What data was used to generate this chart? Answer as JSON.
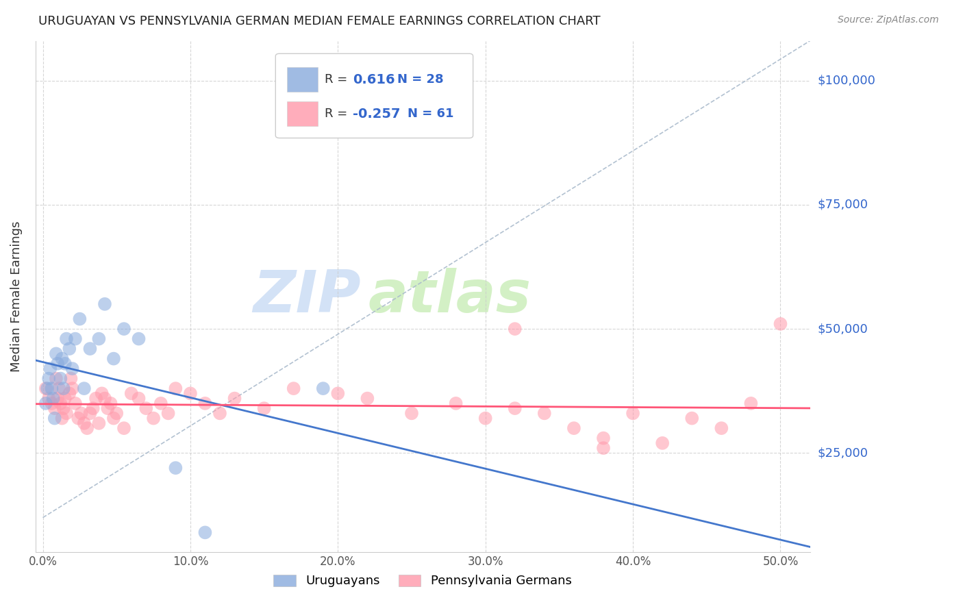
{
  "title": "URUGUAYAN VS PENNSYLVANIA GERMAN MEDIAN FEMALE EARNINGS CORRELATION CHART",
  "source": "Source: ZipAtlas.com",
  "ylabel": "Median Female Earnings",
  "xlabel_ticks": [
    "0.0%",
    "10.0%",
    "20.0%",
    "30.0%",
    "40.0%",
    "50.0%"
  ],
  "xlabel_vals": [
    0.0,
    0.1,
    0.2,
    0.3,
    0.4,
    0.5
  ],
  "ytick_labels": [
    "$25,000",
    "$50,000",
    "$75,000",
    "$100,000"
  ],
  "ytick_vals": [
    25000,
    50000,
    75000,
    100000
  ],
  "xlim": [
    -0.005,
    0.52
  ],
  "ylim": [
    5000,
    108000
  ],
  "watermark_zip": "ZIP",
  "watermark_atlas": "atlas",
  "uruguayan_R": 0.616,
  "uruguayan_N": 28,
  "pennsylvania_R": -0.257,
  "pennsylvania_N": 61,
  "blue_color": "#88AADD",
  "pink_color": "#FF99AA",
  "blue_line_color": "#4477CC",
  "pink_line_color": "#FF5577",
  "dashed_line_color": "#AABBCC",
  "uruguayan_x": [
    0.002,
    0.003,
    0.004,
    0.005,
    0.006,
    0.007,
    0.008,
    0.009,
    0.01,
    0.012,
    0.013,
    0.014,
    0.015,
    0.016,
    0.018,
    0.02,
    0.022,
    0.025,
    0.028,
    0.032,
    0.038,
    0.042,
    0.048,
    0.055,
    0.065,
    0.09,
    0.11,
    0.19
  ],
  "uruguayan_y": [
    35000,
    38000,
    40000,
    42000,
    38000,
    36000,
    32000,
    45000,
    43000,
    40000,
    44000,
    38000,
    43000,
    48000,
    46000,
    42000,
    48000,
    52000,
    38000,
    46000,
    48000,
    55000,
    44000,
    50000,
    48000,
    22000,
    9000,
    38000
  ],
  "pennsylvania_x": [
    0.002,
    0.004,
    0.006,
    0.008,
    0.009,
    0.01,
    0.011,
    0.012,
    0.013,
    0.014,
    0.015,
    0.016,
    0.018,
    0.019,
    0.02,
    0.022,
    0.024,
    0.026,
    0.028,
    0.03,
    0.032,
    0.034,
    0.036,
    0.038,
    0.04,
    0.042,
    0.044,
    0.046,
    0.048,
    0.05,
    0.055,
    0.06,
    0.065,
    0.07,
    0.075,
    0.08,
    0.085,
    0.09,
    0.1,
    0.11,
    0.12,
    0.13,
    0.15,
    0.17,
    0.2,
    0.22,
    0.25,
    0.28,
    0.3,
    0.32,
    0.34,
    0.36,
    0.38,
    0.4,
    0.42,
    0.44,
    0.46,
    0.48,
    0.5,
    0.32,
    0.38
  ],
  "pennsylvania_y": [
    38000,
    36000,
    35000,
    34000,
    40000,
    36000,
    38000,
    35000,
    32000,
    34000,
    36000,
    33000,
    37000,
    40000,
    38000,
    35000,
    32000,
    33000,
    31000,
    30000,
    33000,
    34000,
    36000,
    31000,
    37000,
    36000,
    34000,
    35000,
    32000,
    33000,
    30000,
    37000,
    36000,
    34000,
    32000,
    35000,
    33000,
    38000,
    37000,
    35000,
    33000,
    36000,
    34000,
    38000,
    37000,
    36000,
    33000,
    35000,
    32000,
    34000,
    33000,
    30000,
    28000,
    33000,
    27000,
    32000,
    30000,
    35000,
    51000,
    50000,
    26000
  ]
}
